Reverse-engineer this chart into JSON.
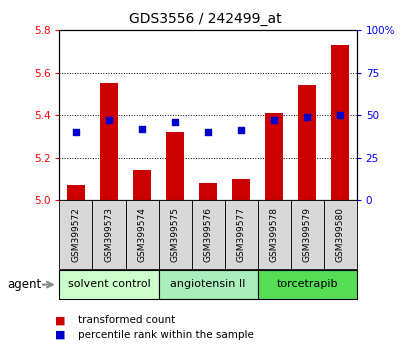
{
  "title": "GDS3556 / 242499_at",
  "samples": [
    "GSM399572",
    "GSM399573",
    "GSM399574",
    "GSM399575",
    "GSM399576",
    "GSM399577",
    "GSM399578",
    "GSM399579",
    "GSM399580"
  ],
  "bar_values": [
    5.07,
    5.55,
    5.14,
    5.32,
    5.08,
    5.1,
    5.41,
    5.54,
    5.73
  ],
  "percentile_values": [
    40,
    47,
    42,
    46,
    40,
    41,
    47,
    49,
    50
  ],
  "bar_bottom": 5.0,
  "ylim": [
    5.0,
    5.8
  ],
  "ylim_right": [
    0,
    100
  ],
  "yticks_left": [
    5.0,
    5.2,
    5.4,
    5.6,
    5.8
  ],
  "yticks_right": [
    0,
    25,
    50,
    75,
    100
  ],
  "bar_color": "#cc0000",
  "dot_color": "#0000cc",
  "groups": [
    {
      "label": "solvent control",
      "indices": [
        0,
        1,
        2
      ],
      "color": "#ccffcc"
    },
    {
      "label": "angiotensin II",
      "indices": [
        3,
        4,
        5
      ],
      "color": "#aaeebb"
    },
    {
      "label": "torcetrapib",
      "indices": [
        6,
        7,
        8
      ],
      "color": "#55dd55"
    }
  ],
  "agent_label": "agent",
  "legend_bar_label": "transformed count",
  "legend_dot_label": "percentile rank within the sample",
  "bar_width": 0.55,
  "sample_box_color": "#d8d8d8",
  "title_fontsize": 10
}
